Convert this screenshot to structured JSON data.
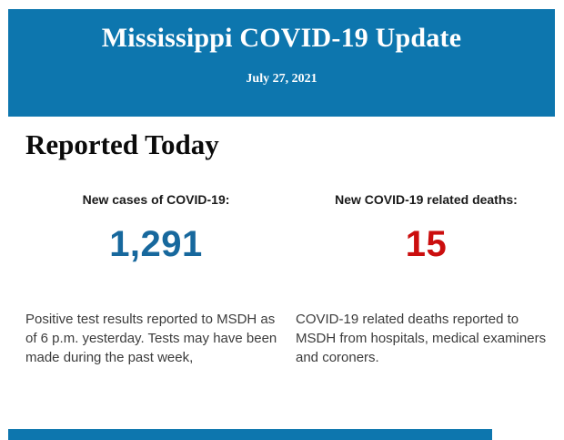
{
  "theme": {
    "banner_bg": "#0d76ae",
    "cases_color": "#17689d",
    "deaths_color": "#cb0e0e"
  },
  "header": {
    "title": "Mississippi COVID-19 Update",
    "date": "July 27, 2021"
  },
  "main": {
    "heading": "Reported Today",
    "stats": [
      {
        "label": "New cases of COVID-19:",
        "value": "1,291",
        "description": "Positive test results reported to MSDH as of 6 p.m. yesterday. Tests may have been made during the past week,"
      },
      {
        "label": "New COVID-19 related deaths:",
        "value": "15",
        "description": "COVID-19 related deaths reported to MSDH from hospitals, medical examiners and coroners."
      }
    ]
  }
}
